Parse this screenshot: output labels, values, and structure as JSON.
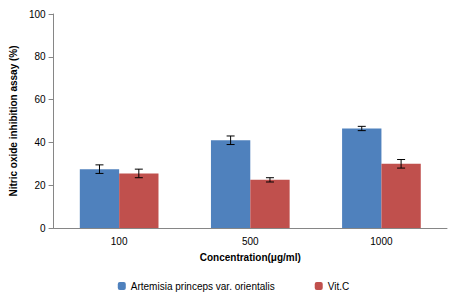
{
  "chart_data": {
    "type": "bar",
    "x_label": "Concentration(μg/ml)",
    "y_label": "Nitric oxide inhibition assay (%)",
    "categories": [
      "100",
      "500",
      "1000"
    ],
    "series": [
      {
        "name": "Artemisia princeps var. orientalis",
        "color": "#4f81bd",
        "values": [
          27.5,
          41,
          46.5
        ],
        "errors": [
          2,
          2,
          1
        ]
      },
      {
        "name": "Vit.C",
        "color": "#c0504d",
        "values": [
          25.5,
          22.5,
          30
        ],
        "errors": [
          2,
          1,
          2
        ]
      }
    ],
    "ylim": [
      0,
      100
    ],
    "yticks": [
      0,
      20,
      40,
      60,
      80,
      100
    ],
    "grid": false,
    "legend": "bottom"
  }
}
